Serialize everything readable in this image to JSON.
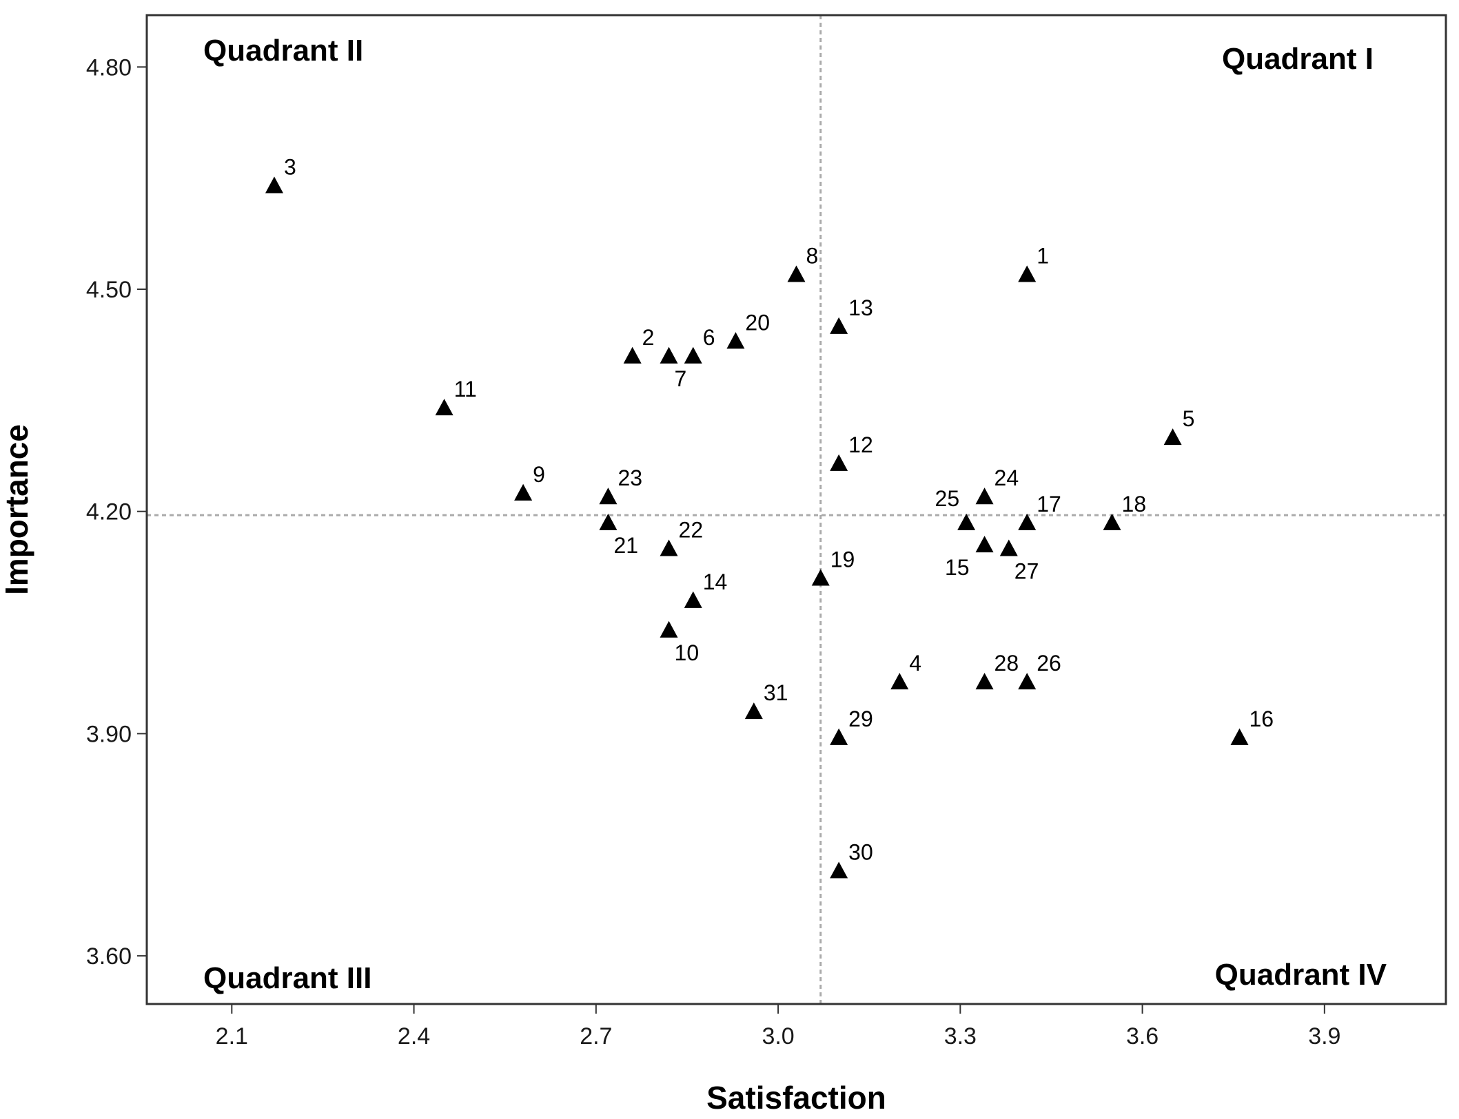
{
  "chart_data": {
    "type": "scatter",
    "title": "",
    "xlabel": "Satisfaction",
    "ylabel": "Importance",
    "xlim": [
      1.96,
      4.1
    ],
    "ylim": [
      3.535,
      4.87
    ],
    "x_ticks": [
      2.1,
      2.4,
      2.7,
      3.0,
      3.3,
      3.6,
      3.9
    ],
    "x_tick_labels": [
      "2.1",
      "2.4",
      "2.7",
      "3.0",
      "3.3",
      "3.6",
      "3.9"
    ],
    "y_ticks": [
      3.6,
      3.9,
      4.2,
      4.5,
      4.8
    ],
    "y_tick_labels": [
      "3.60",
      "3.90",
      "4.20",
      "4.50",
      "4.80"
    ],
    "reference_lines": {
      "x": 3.07,
      "y": 4.195
    },
    "quadrants": [
      {
        "label": "Quadrant I",
        "corner": "top-right"
      },
      {
        "label": "Quadrant II",
        "corner": "top-left"
      },
      {
        "label": "Quadrant III",
        "corner": "bottom-left"
      },
      {
        "label": "Quadrant IV",
        "corner": "bottom-right"
      }
    ],
    "marker": "triangle",
    "marker_color": "#000000",
    "points": [
      {
        "label": "1",
        "x": 3.41,
        "y": 4.52,
        "label_pos": "upper-right"
      },
      {
        "label": "2",
        "x": 2.76,
        "y": 4.41,
        "label_pos": "upper-right"
      },
      {
        "label": "3",
        "x": 2.17,
        "y": 4.64,
        "label_pos": "upper-right"
      },
      {
        "label": "4",
        "x": 3.2,
        "y": 3.97,
        "label_pos": "upper-right"
      },
      {
        "label": "5",
        "x": 3.65,
        "y": 4.3,
        "label_pos": "upper-right"
      },
      {
        "label": "6",
        "x": 2.86,
        "y": 4.41,
        "label_pos": "upper-right"
      },
      {
        "label": "7",
        "x": 2.82,
        "y": 4.41,
        "label_pos": "below-right"
      },
      {
        "label": "8",
        "x": 3.03,
        "y": 4.52,
        "label_pos": "upper-right"
      },
      {
        "label": "9",
        "x": 2.58,
        "y": 4.225,
        "label_pos": "upper-right"
      },
      {
        "label": "10",
        "x": 2.82,
        "y": 4.04,
        "label_pos": "below-right"
      },
      {
        "label": "11",
        "x": 2.45,
        "y": 4.34,
        "label_pos": "upper-right"
      },
      {
        "label": "12",
        "x": 3.1,
        "y": 4.265,
        "label_pos": "upper-right"
      },
      {
        "label": "13",
        "x": 3.1,
        "y": 4.45,
        "label_pos": "upper-right"
      },
      {
        "label": "14",
        "x": 2.86,
        "y": 4.08,
        "label_pos": "upper-right"
      },
      {
        "label": "15",
        "x": 3.34,
        "y": 4.155,
        "label_pos": "below-left"
      },
      {
        "label": "16",
        "x": 3.76,
        "y": 3.895,
        "label_pos": "upper-right"
      },
      {
        "label": "17",
        "x": 3.41,
        "y": 4.185,
        "label_pos": "upper-right"
      },
      {
        "label": "18",
        "x": 3.55,
        "y": 4.185,
        "label_pos": "upper-right"
      },
      {
        "label": "19",
        "x": 3.07,
        "y": 4.11,
        "label_pos": "upper-right"
      },
      {
        "label": "20",
        "x": 2.93,
        "y": 4.43,
        "label_pos": "upper-right"
      },
      {
        "label": "21",
        "x": 2.72,
        "y": 4.185,
        "label_pos": "below-right"
      },
      {
        "label": "22",
        "x": 2.82,
        "y": 4.15,
        "label_pos": "upper-right"
      },
      {
        "label": "23",
        "x": 2.72,
        "y": 4.22,
        "label_pos": "upper-right"
      },
      {
        "label": "24",
        "x": 3.34,
        "y": 4.22,
        "label_pos": "upper-right"
      },
      {
        "label": "25",
        "x": 3.31,
        "y": 4.185,
        "label_pos": "upper-left"
      },
      {
        "label": "26",
        "x": 3.41,
        "y": 3.97,
        "label_pos": "upper-right"
      },
      {
        "label": "27",
        "x": 3.38,
        "y": 4.15,
        "label_pos": "below-right"
      },
      {
        "label": "28",
        "x": 3.34,
        "y": 3.97,
        "label_pos": "upper-right"
      },
      {
        "label": "29",
        "x": 3.1,
        "y": 3.895,
        "label_pos": "upper-right"
      },
      {
        "label": "30",
        "x": 3.1,
        "y": 3.715,
        "label_pos": "upper-right"
      },
      {
        "label": "31",
        "x": 2.96,
        "y": 3.93,
        "label_pos": "upper-right"
      }
    ]
  }
}
